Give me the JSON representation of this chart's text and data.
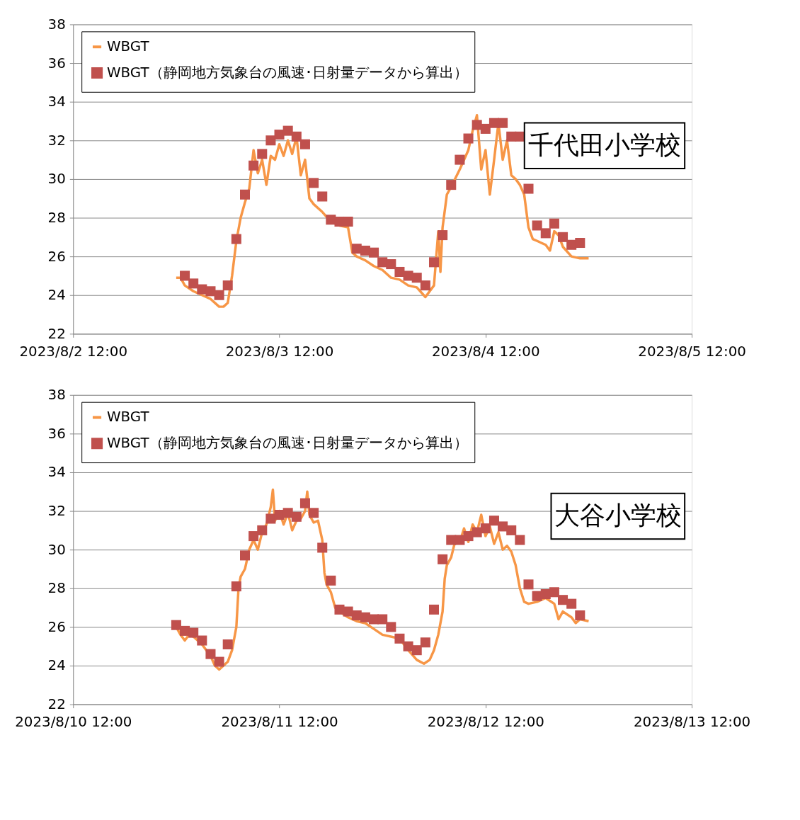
{
  "chart_data": [
    {
      "type": "line",
      "xlim": [
        "2023-08-02T12:00",
        "2023-08-05T12:00"
      ],
      "xticks": [
        {
          "value": "2023-08-02T12:00",
          "label": "2023/8/2 12:00"
        },
        {
          "value": "2023-08-03T12:00",
          "label": "2023/8/3 12:00"
        },
        {
          "value": "2023-08-04T12:00",
          "label": "2023/8/4 12:00"
        },
        {
          "value": "2023-08-05T12:00",
          "label": "2023/8/5 12:00"
        }
      ],
      "ylim": [
        22,
        38
      ],
      "yticks": [
        22,
        24,
        26,
        28,
        30,
        32,
        34,
        36,
        38
      ],
      "grid": "y",
      "legend": "top",
      "annotations": [
        "千代田小学校"
      ],
      "series": [
        {
          "name": "WBGT",
          "color": "#f79646",
          "x": [
            "2023-08-03T00:00",
            "2023-08-03T00:30",
            "2023-08-03T01:00",
            "2023-08-03T02:00",
            "2023-08-03T03:00",
            "2023-08-03T04:00",
            "2023-08-03T05:00",
            "2023-08-03T05:30",
            "2023-08-03T06:00",
            "2023-08-03T06:30",
            "2023-08-03T07:00",
            "2023-08-03T07:30",
            "2023-08-03T08:00",
            "2023-08-03T08:30",
            "2023-08-03T09:00",
            "2023-08-03T09:30",
            "2023-08-03T10:00",
            "2023-08-03T10:30",
            "2023-08-03T11:00",
            "2023-08-03T11:30",
            "2023-08-03T12:00",
            "2023-08-03T12:30",
            "2023-08-03T13:00",
            "2023-08-03T13:30",
            "2023-08-03T14:00",
            "2023-08-03T14:30",
            "2023-08-03T15:00",
            "2023-08-03T15:30",
            "2023-08-03T16:00",
            "2023-08-03T17:00",
            "2023-08-03T18:00",
            "2023-08-03T19:00",
            "2023-08-03T20:00",
            "2023-08-03T20:30",
            "2023-08-03T21:00",
            "2023-08-03T22:00",
            "2023-08-03T23:00",
            "2023-08-04T00:00",
            "2023-08-04T01:00",
            "2023-08-04T02:00",
            "2023-08-04T03:00",
            "2023-08-04T04:00",
            "2023-08-04T05:00",
            "2023-08-04T06:00",
            "2023-08-04T06:30",
            "2023-08-04T06:45",
            "2023-08-04T07:00",
            "2023-08-04T07:30",
            "2023-08-04T08:00",
            "2023-08-04T09:00",
            "2023-08-04T10:00",
            "2023-08-04T10:30",
            "2023-08-04T11:00",
            "2023-08-04T11:30",
            "2023-08-04T12:00",
            "2023-08-04T12:30",
            "2023-08-04T13:00",
            "2023-08-04T13:30",
            "2023-08-04T14:00",
            "2023-08-04T14:30",
            "2023-08-04T15:00",
            "2023-08-04T15:30",
            "2023-08-04T16:00",
            "2023-08-04T16:30",
            "2023-08-04T17:00",
            "2023-08-04T17:30",
            "2023-08-04T18:00",
            "2023-08-04T19:00",
            "2023-08-04T19:30",
            "2023-08-04T20:00",
            "2023-08-04T20:30",
            "2023-08-04T21:00",
            "2023-08-04T22:00",
            "2023-08-04T23:00",
            "2023-08-05T00:00"
          ],
          "values": [
            24.9,
            24.9,
            24.5,
            24.2,
            24.0,
            23.8,
            23.4,
            23.4,
            23.6,
            25.0,
            26.8,
            28.0,
            28.8,
            29.5,
            31.5,
            30.3,
            31.0,
            29.7,
            31.2,
            31.0,
            31.8,
            31.2,
            32.0,
            31.3,
            32.2,
            30.2,
            31.0,
            29.0,
            28.7,
            28.3,
            27.8,
            27.6,
            27.5,
            26.2,
            26.0,
            25.8,
            25.5,
            25.3,
            24.9,
            24.8,
            24.5,
            24.4,
            23.9,
            24.5,
            27.3,
            25.2,
            27.5,
            29.2,
            29.6,
            30.5,
            31.5,
            32.5,
            33.3,
            30.5,
            31.5,
            29.2,
            31.0,
            32.9,
            31.0,
            32.0,
            30.2,
            30.0,
            29.7,
            29.2,
            27.5,
            26.9,
            26.8,
            26.6,
            26.3,
            27.3,
            27.1,
            26.5,
            26.0,
            25.9,
            25.9
          ]
        },
        {
          "name": "WBGT（静岡地方気象台の風速･日射量データから算出）",
          "type": "scatter",
          "color": "#c0504d",
          "marker": "square",
          "x": [
            "2023-08-03T01:00",
            "2023-08-03T02:00",
            "2023-08-03T03:00",
            "2023-08-03T04:00",
            "2023-08-03T05:00",
            "2023-08-03T06:00",
            "2023-08-03T07:00",
            "2023-08-03T08:00",
            "2023-08-03T09:00",
            "2023-08-03T10:00",
            "2023-08-03T11:00",
            "2023-08-03T12:00",
            "2023-08-03T13:00",
            "2023-08-03T14:00",
            "2023-08-03T15:00",
            "2023-08-03T16:00",
            "2023-08-03T17:00",
            "2023-08-03T18:00",
            "2023-08-03T19:00",
            "2023-08-03T20:00",
            "2023-08-03T21:00",
            "2023-08-03T22:00",
            "2023-08-03T23:00",
            "2023-08-04T00:00",
            "2023-08-04T01:00",
            "2023-08-04T02:00",
            "2023-08-04T03:00",
            "2023-08-04T04:00",
            "2023-08-04T05:00",
            "2023-08-04T06:00",
            "2023-08-04T07:00",
            "2023-08-04T08:00",
            "2023-08-04T09:00",
            "2023-08-04T10:00",
            "2023-08-04T11:00",
            "2023-08-04T12:00",
            "2023-08-04T13:00",
            "2023-08-04T14:00",
            "2023-08-04T15:00",
            "2023-08-04T16:00",
            "2023-08-04T17:00",
            "2023-08-04T18:00",
            "2023-08-04T19:00",
            "2023-08-04T20:00",
            "2023-08-04T21:00",
            "2023-08-04T22:00",
            "2023-08-04T23:00"
          ],
          "values": [
            25.0,
            24.6,
            24.3,
            24.2,
            24.0,
            24.5,
            26.9,
            29.2,
            30.7,
            31.3,
            32.0,
            32.3,
            32.5,
            32.2,
            31.8,
            29.8,
            29.1,
            27.9,
            27.8,
            27.8,
            26.4,
            26.3,
            26.2,
            25.7,
            25.6,
            25.2,
            25.0,
            24.9,
            24.5,
            25.7,
            27.1,
            29.7,
            31.0,
            32.1,
            32.8,
            32.6,
            32.9,
            32.9,
            32.2,
            32.2,
            29.5,
            27.6,
            27.2,
            27.7,
            27.0,
            26.6,
            26.7
          ]
        }
      ]
    },
    {
      "type": "line",
      "xlim": [
        "2023-08-10T12:00",
        "2023-08-13T12:00"
      ],
      "xticks": [
        {
          "value": "2023-08-10T12:00",
          "label": "2023/8/10 12:00"
        },
        {
          "value": "2023-08-11T12:00",
          "label": "2023/8/11 12:00"
        },
        {
          "value": "2023-08-12T12:00",
          "label": "2023/8/12 12:00"
        },
        {
          "value": "2023-08-13T12:00",
          "label": "2023/8/13 12:00"
        }
      ],
      "ylim": [
        22,
        38
      ],
      "yticks": [
        22,
        24,
        26,
        28,
        30,
        32,
        34,
        36,
        38
      ],
      "grid": "y",
      "legend": "top",
      "annotations": [
        "大谷小学校"
      ],
      "series": [
        {
          "name": "WBGT",
          "color": "#f79646",
          "x": [
            "2023-08-11T00:00",
            "2023-08-11T00:30",
            "2023-08-11T01:00",
            "2023-08-11T01:30",
            "2023-08-11T02:00",
            "2023-08-11T03:00",
            "2023-08-11T04:00",
            "2023-08-11T04:30",
            "2023-08-11T05:00",
            "2023-08-11T06:00",
            "2023-08-11T06:30",
            "2023-08-11T07:00",
            "2023-08-11T07:15",
            "2023-08-11T07:30",
            "2023-08-11T08:00",
            "2023-08-11T08:30",
            "2023-08-11T09:00",
            "2023-08-11T09:30",
            "2023-08-11T10:00",
            "2023-08-11T10:30",
            "2023-08-11T11:00",
            "2023-08-11T11:15",
            "2023-08-11T11:30",
            "2023-08-11T12:00",
            "2023-08-11T12:30",
            "2023-08-11T13:00",
            "2023-08-11T13:30",
            "2023-08-11T14:00",
            "2023-08-11T14:30",
            "2023-08-11T15:00",
            "2023-08-11T15:15",
            "2023-08-11T15:30",
            "2023-08-11T16:00",
            "2023-08-11T16:30",
            "2023-08-11T17:00",
            "2023-08-11T17:15",
            "2023-08-11T17:30",
            "2023-08-11T18:00",
            "2023-08-11T18:30",
            "2023-08-11T19:00",
            "2023-08-11T20:00",
            "2023-08-11T21:00",
            "2023-08-11T22:00",
            "2023-08-11T23:00",
            "2023-08-12T00:00",
            "2023-08-12T02:00",
            "2023-08-12T03:00",
            "2023-08-12T04:00",
            "2023-08-12T04:50",
            "2023-08-12T05:30",
            "2023-08-12T06:00",
            "2023-08-12T06:30",
            "2023-08-12T07:00",
            "2023-08-12T07:15",
            "2023-08-12T07:30",
            "2023-08-12T08:00",
            "2023-08-12T08:30",
            "2023-08-12T09:00",
            "2023-08-12T09:30",
            "2023-08-12T10:00",
            "2023-08-12T10:30",
            "2023-08-12T11:00",
            "2023-08-12T11:30",
            "2023-08-12T12:00",
            "2023-08-12T12:30",
            "2023-08-12T13:00",
            "2023-08-12T13:30",
            "2023-08-12T14:00",
            "2023-08-12T14:30",
            "2023-08-12T15:00",
            "2023-08-12T15:30",
            "2023-08-12T16:00",
            "2023-08-12T16:30",
            "2023-08-12T17:00",
            "2023-08-12T18:00",
            "2023-08-12T19:00",
            "2023-08-12T20:00",
            "2023-08-12T20:30",
            "2023-08-12T21:00",
            "2023-08-12T22:00",
            "2023-08-12T22:30",
            "2023-08-12T23:00",
            "2023-08-13T00:00"
          ],
          "values": [
            26.0,
            25.6,
            25.3,
            25.6,
            25.5,
            25.1,
            24.5,
            24.0,
            23.8,
            24.2,
            24.8,
            26.0,
            28.0,
            28.6,
            29.0,
            30.0,
            30.5,
            30.0,
            30.9,
            31.3,
            32.2,
            33.1,
            31.5,
            32.0,
            31.3,
            31.9,
            31.0,
            31.5,
            31.6,
            32.0,
            33.0,
            31.8,
            31.4,
            31.5,
            30.5,
            28.8,
            28.2,
            27.8,
            27.0,
            26.8,
            26.5,
            26.3,
            26.2,
            25.9,
            25.6,
            25.4,
            24.8,
            24.3,
            24.1,
            24.3,
            24.8,
            25.6,
            26.8,
            28.5,
            29.2,
            29.6,
            30.5,
            30.4,
            31.1,
            30.4,
            31.3,
            30.9,
            31.8,
            30.7,
            31.2,
            30.3,
            30.9,
            30.0,
            30.2,
            29.9,
            29.2,
            28.0,
            27.3,
            27.2,
            27.3,
            27.5,
            27.2,
            26.4,
            26.8,
            26.5,
            26.2,
            26.4,
            26.3
          ]
        },
        {
          "name": "WBGT（静岡地方気象台の風速･日射量データから算出）",
          "type": "scatter",
          "color": "#c0504d",
          "marker": "square",
          "x": [
            "2023-08-11T00:00",
            "2023-08-11T01:00",
            "2023-08-11T02:00",
            "2023-08-11T03:00",
            "2023-08-11T04:00",
            "2023-08-11T05:00",
            "2023-08-11T06:00",
            "2023-08-11T07:00",
            "2023-08-11T08:00",
            "2023-08-11T09:00",
            "2023-08-11T10:00",
            "2023-08-11T11:00",
            "2023-08-11T12:00",
            "2023-08-11T13:00",
            "2023-08-11T14:00",
            "2023-08-11T15:00",
            "2023-08-11T16:00",
            "2023-08-11T17:00",
            "2023-08-11T18:00",
            "2023-08-11T19:00",
            "2023-08-11T20:00",
            "2023-08-11T21:00",
            "2023-08-11T22:00",
            "2023-08-11T23:00",
            "2023-08-12T00:00",
            "2023-08-12T01:00",
            "2023-08-12T02:00",
            "2023-08-12T03:00",
            "2023-08-12T04:00",
            "2023-08-12T05:00",
            "2023-08-12T06:00",
            "2023-08-12T07:00",
            "2023-08-12T08:00",
            "2023-08-12T09:00",
            "2023-08-12T10:00",
            "2023-08-12T11:00",
            "2023-08-12T12:00",
            "2023-08-12T13:00",
            "2023-08-12T14:00",
            "2023-08-12T15:00",
            "2023-08-12T16:00",
            "2023-08-12T17:00",
            "2023-08-12T18:00",
            "2023-08-12T19:00",
            "2023-08-12T20:00",
            "2023-08-12T21:00",
            "2023-08-12T22:00",
            "2023-08-12T23:00"
          ],
          "values": [
            26.1,
            25.8,
            25.7,
            25.3,
            24.6,
            24.2,
            25.1,
            28.1,
            29.7,
            30.7,
            31.0,
            31.6,
            31.8,
            31.9,
            31.7,
            32.4,
            31.9,
            30.1,
            28.4,
            26.9,
            26.8,
            26.6,
            26.5,
            26.4,
            26.4,
            26.0,
            25.4,
            25.0,
            24.8,
            25.2,
            26.9,
            29.5,
            30.5,
            30.5,
            30.7,
            30.9,
            31.1,
            31.5,
            31.2,
            31.0,
            30.5,
            28.2,
            27.6,
            27.7,
            27.8,
            27.4,
            27.2,
            26.6
          ]
        }
      ]
    }
  ]
}
